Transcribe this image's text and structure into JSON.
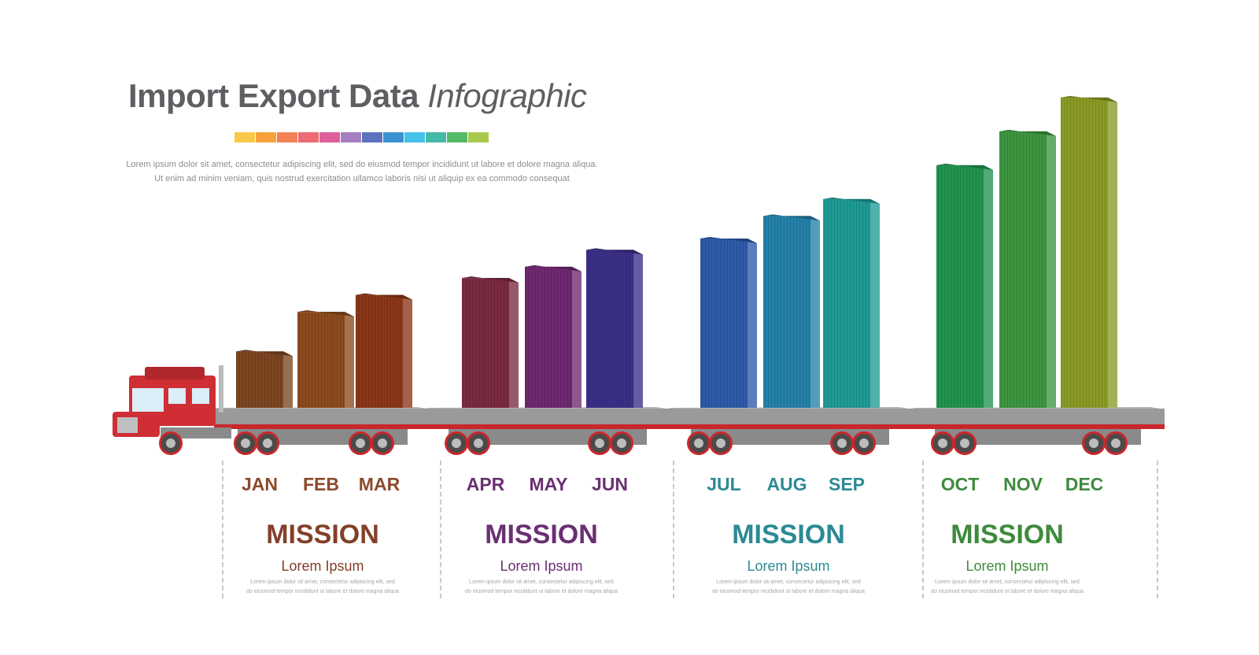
{
  "header": {
    "title_bold": "Import Export Data",
    "title_italic": "Infographic",
    "desc_line1": "Lorem ipsum dolor sit amet, consectetur adipiscing elit, sed do eiusmod tempor incididunt  ut labore et dolore magna aliqua.",
    "desc_line2": "Ut enim ad minim veniam, quis nostrud exercitation ullamco laboris nisi ut aliquip ex ea commodo consequat",
    "swatch_colors": [
      "#f9c84a",
      "#f6a13b",
      "#f28155",
      "#ee6b73",
      "#de5f9a",
      "#a57ec1",
      "#5b72bd",
      "#3c92d0",
      "#45c2ea",
      "#45b9a7",
      "#56b96a",
      "#a9c94c"
    ]
  },
  "chart_data": {
    "type": "bar",
    "title": "Import Export Data Infographic",
    "categories": [
      "JAN",
      "FEB",
      "MAR",
      "APR",
      "MAY",
      "JUN",
      "JUL",
      "AUG",
      "SEP",
      "OCT",
      "NOV",
      "DEC"
    ],
    "values": [
      10,
      17,
      20,
      23,
      25,
      28,
      30,
      34,
      37,
      43,
      49,
      55
    ],
    "ylim": [
      0,
      60
    ],
    "grid": false,
    "legend": "none",
    "colors": [
      "#7b4520",
      "#8c4a1f",
      "#8a3618",
      "#7a2a40",
      "#6e2870",
      "#3a2f86",
      "#2d5aa8",
      "#2480a8",
      "#1f9a95",
      "#21934f",
      "#3c9540",
      "#8a9a25"
    ]
  },
  "groups": [
    {
      "mission": "MISSION",
      "sub": "Lorem Ipsum",
      "text1": "Lorem ipsum dolor sit amet, consectetur adipiscing elit, sed",
      "text2": "do eiusmod tempor incididunt ut labore et dolore magna aliqua",
      "color": "#82402a",
      "month_color": "#8b4a2b"
    },
    {
      "mission": "MISSION",
      "sub": "Lorem Ipsum",
      "text1": "Lorem ipsum dolor sit amet, consectetur adipiscing elit, sed",
      "text2": "do eiusmod tempor incididunt ut labore et dolore magna aliqua",
      "color": "#6a2f72",
      "month_color": "#6a2f72"
    },
    {
      "mission": "MISSION",
      "sub": "Lorem Ipsum",
      "text1": "Lorem ipsum dolor sit amet, consectetur adipiscing elit, sed",
      "text2": "do eiusmod tempor incididunt ut labore et dolore magna aliqua",
      "color": "#2b8a95",
      "month_color": "#2b8a95"
    },
    {
      "mission": "MISSION",
      "sub": "Lorem Ipsum",
      "text1": "Lorem ipsum dolor sit amet, consectetur adipiscing elit, sed",
      "text2": "do eiusmod tempor incididunt ut labore et dolore magna aliqua",
      "color": "#3f8a3c",
      "month_color": "#3f8a3c"
    }
  ],
  "truck": {
    "cab_color": "#cf2e34",
    "trailer_color": "#9a9a9a",
    "frame_color": "#c8272d",
    "wheel_color": "#4a4a4a"
  }
}
